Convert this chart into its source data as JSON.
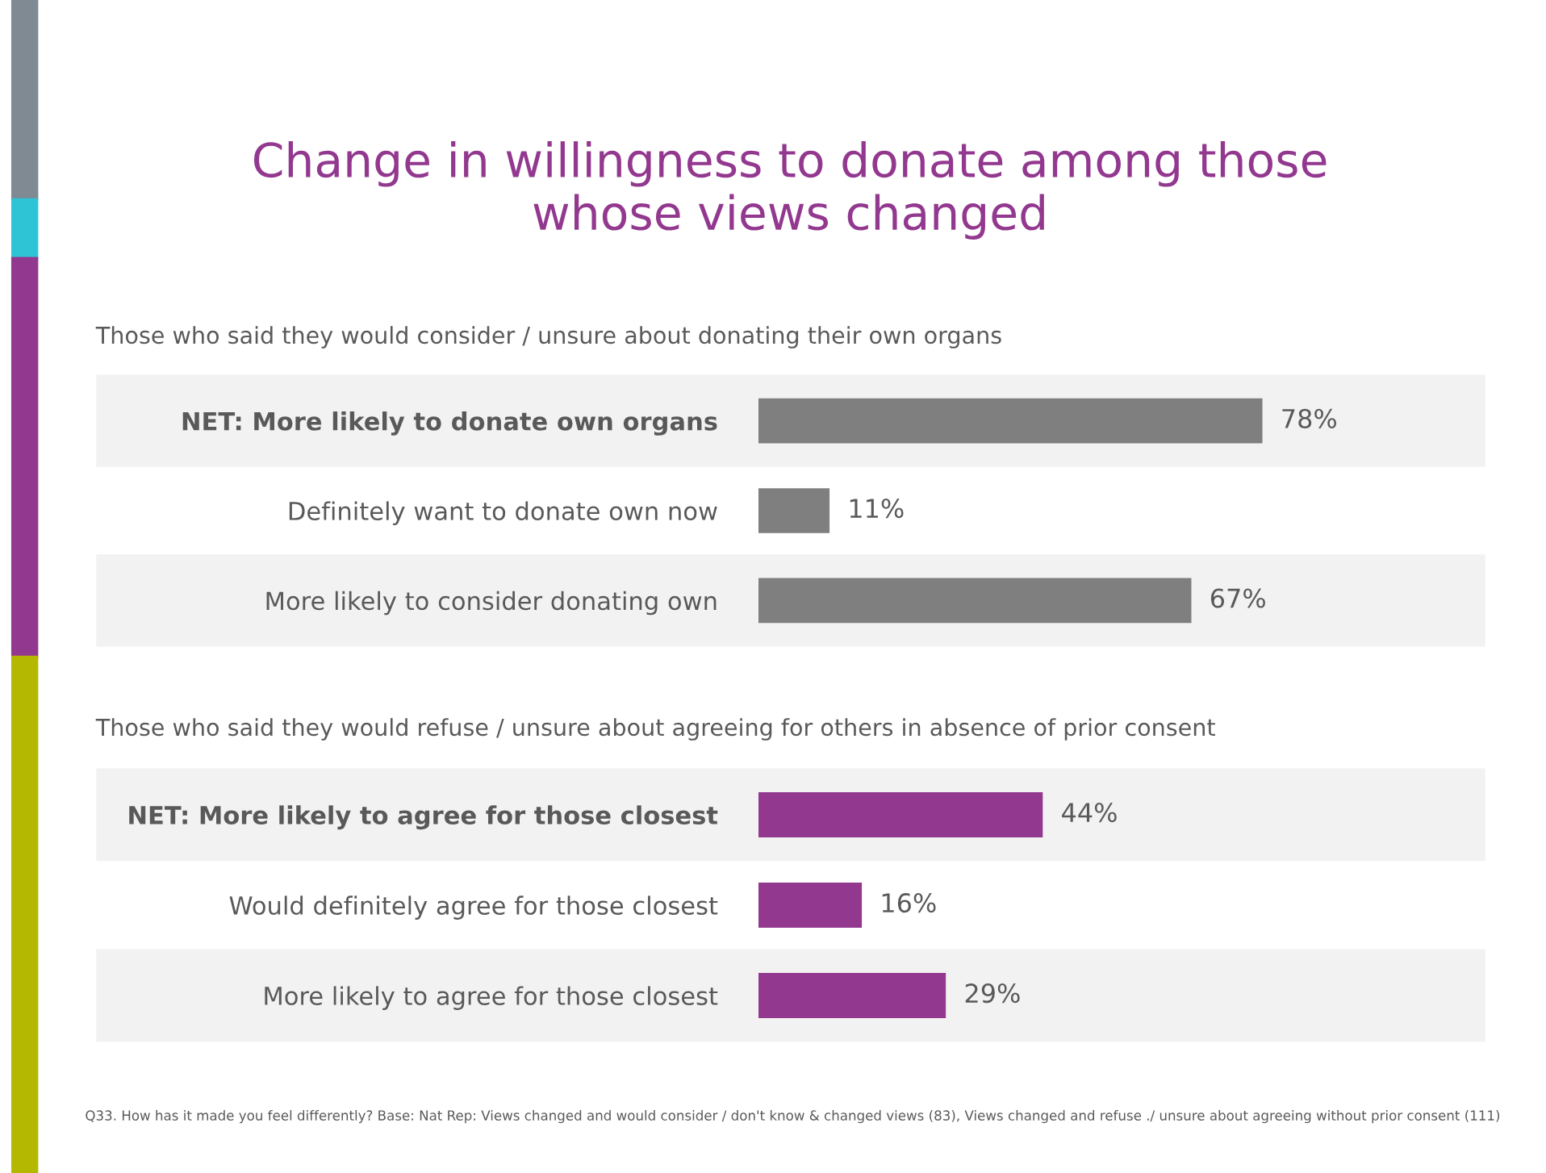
{
  "chart_data": [
    {
      "type": "bar",
      "orientation": "horizontal",
      "title": "Change in willingness to donate among those\nwhose views changed",
      "subtitle": "Those who said they would consider / unsure about donating their own organs",
      "categories": [
        "NET: More likely to donate own organs",
        "Definitely want to donate own now",
        "More likely to consider donating own"
      ],
      "values": [
        78,
        11,
        67
      ],
      "value_labels": [
        "78%",
        "11%",
        "67%"
      ],
      "color": "#7f7f7f",
      "tick_labels": "y",
      "grid": false
    },
    {
      "type": "bar",
      "orientation": "horizontal",
      "subtitle": "Those who said they would refuse / unsure about agreeing for others in absence of prior consent",
      "categories": [
        "NET: More likely to agree for those closest",
        "Would definitely agree for those closest",
        "More likely to agree for those closest"
      ],
      "values": [
        44,
        16,
        29
      ],
      "value_labels": [
        "44%",
        "16%",
        "29%"
      ],
      "color": "#93388f",
      "tick_labels": "y",
      "grid": false,
      "annotations": [
        "Q33. How has it made you feel differently? Base: Nat Rep: Views changed and would consider / don't know & changed views (83), Views changed and refuse ./ unsure about agreeing without prior consent (111)"
      ]
    }
  ]
}
